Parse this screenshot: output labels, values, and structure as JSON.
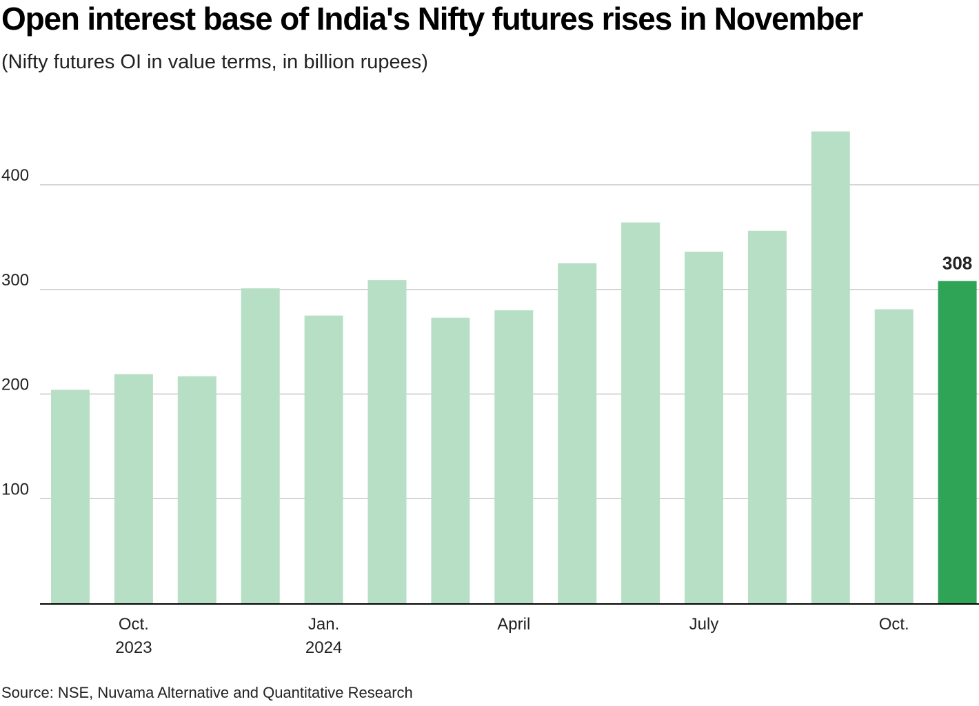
{
  "title": "Open interest base of India's Nifty futures rises in November",
  "subtitle": "(Nifty futures OI in value terms, in billion rupees)",
  "source": "Source: NSE, Nuvama Alternative and Quantitative Research",
  "colors": {
    "bar": "#b7dfc5",
    "highlight": "#2fa457",
    "grid": "#c8c8c8",
    "axis": "#000000"
  },
  "chart_data": {
    "type": "bar",
    "title": "Open interest base of India's Nifty futures rises in November",
    "subtitle": "(Nifty futures OI in value terms, in billion rupees)",
    "xlabel": "",
    "ylabel": "",
    "ylim": [
      0,
      460
    ],
    "yticks": [
      100,
      200,
      300,
      400
    ],
    "grid": true,
    "categories": [
      "Sep 2023",
      "Oct 2023",
      "Nov 2023",
      "Dec 2023",
      "Jan 2024",
      "Feb 2024",
      "Mar 2024",
      "Apr 2024",
      "May 2024",
      "Jun 2024",
      "Jul 2024",
      "Aug 2024",
      "Sep 2024",
      "Oct 2024",
      "Nov 2024"
    ],
    "values": [
      204,
      219,
      217,
      301,
      275,
      309,
      273,
      280,
      325,
      364,
      336,
      356,
      451,
      281,
      308
    ],
    "highlight_index": 14,
    "highlight_label": "308",
    "xtick_labels": [
      {
        "index": 1,
        "lines": [
          "Oct.",
          "2023"
        ]
      },
      {
        "index": 4,
        "lines": [
          "Jan.",
          "2024"
        ]
      },
      {
        "index": 7,
        "lines": [
          "April"
        ]
      },
      {
        "index": 10,
        "lines": [
          "July"
        ]
      },
      {
        "index": 13,
        "lines": [
          "Oct."
        ]
      }
    ]
  }
}
